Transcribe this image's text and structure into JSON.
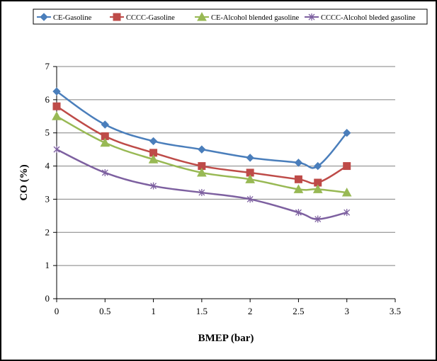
{
  "chart_data": {
    "type": "line",
    "title": "",
    "xlabel": "BMEP (bar)",
    "ylabel": "CO (%)",
    "xlim": [
      0,
      3.5
    ],
    "ylim": [
      0,
      7
    ],
    "xticks": [
      "0",
      "0.5",
      "1",
      "1.5",
      "2",
      "2.5",
      "3",
      "3.5"
    ],
    "yticks": [
      "0",
      "1",
      "2",
      "3",
      "4",
      "5",
      "6",
      "7"
    ],
    "grid": "horizontal",
    "legend_position": "top",
    "x": [
      0,
      0.5,
      1,
      1.5,
      2,
      2.5,
      2.7,
      3
    ],
    "series": [
      {
        "name": "CE-Gasoline",
        "color": "#4a7ebb",
        "marker": "diamond",
        "values": [
          6.25,
          5.25,
          4.75,
          4.5,
          4.25,
          4.1,
          4.0,
          5.0
        ]
      },
      {
        "name": "CCCC-Gasoline",
        "color": "#be4b48",
        "marker": "square",
        "values": [
          5.8,
          4.9,
          4.4,
          4.0,
          3.8,
          3.6,
          3.5,
          4.0
        ]
      },
      {
        "name": "CE-Alcohol blended gasoline",
        "color": "#98b954",
        "marker": "triangle",
        "values": [
          5.5,
          4.7,
          4.2,
          3.8,
          3.6,
          3.3,
          3.3,
          3.2
        ]
      },
      {
        "name": "CCCC-Alcohol bleded gasoline",
        "color": "#7d60a0",
        "marker": "star",
        "values": [
          4.5,
          3.8,
          3.4,
          3.2,
          3.0,
          2.6,
          2.4,
          2.6
        ]
      }
    ]
  }
}
